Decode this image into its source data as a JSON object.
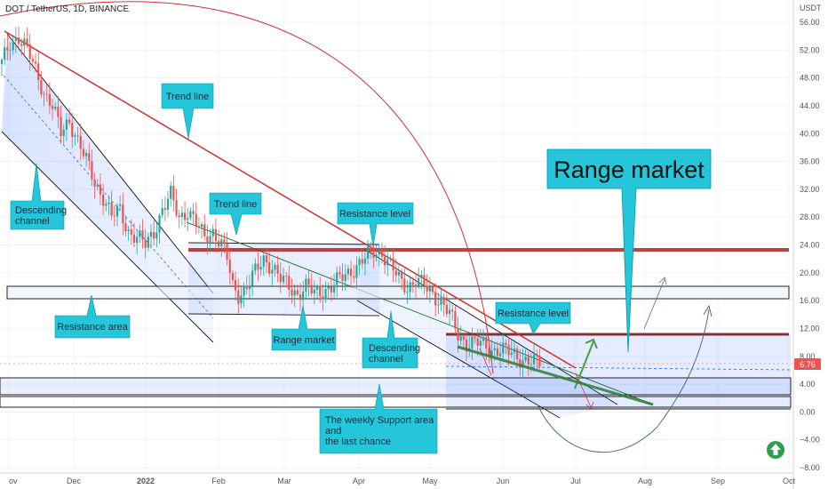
{
  "chart_data": {
    "type": "candlestick",
    "title": "DOT / TetherUS, 1D, BINANCE",
    "yunit": "USDT",
    "y_ticks": [
      56,
      52,
      48,
      44,
      40,
      36,
      32,
      28,
      24,
      20,
      16,
      12,
      8,
      4,
      0,
      -4,
      -8
    ],
    "y_tick_labels": [
      "56.00",
      "52.00",
      "48.00",
      "44.00",
      "40.00",
      "36.00",
      "32.00",
      "28.00",
      "24.00",
      "20.00",
      "16.00",
      "12.00",
      "8.00",
      "4.00",
      "0.00",
      "−4.00",
      "−8.00"
    ],
    "x_tick_labels": [
      "Nov",
      "Dec",
      "2022",
      "Feb",
      "Mar",
      "Apr",
      "May",
      "Jun",
      "Jul",
      "Aug",
      "Sep",
      "Oct"
    ],
    "last_price_label": "6.76",
    "price_path": [
      [
        0,
        50
      ],
      [
        3,
        53
      ],
      [
        6,
        54
      ],
      [
        9,
        52
      ],
      [
        12,
        49
      ],
      [
        15,
        46
      ],
      [
        18,
        44
      ],
      [
        21,
        40
      ],
      [
        24,
        42
      ],
      [
        27,
        39
      ],
      [
        30,
        36
      ],
      [
        33,
        33
      ],
      [
        36,
        31
      ],
      [
        39,
        28
      ],
      [
        42,
        29
      ],
      [
        45,
        26
      ],
      [
        48,
        25
      ],
      [
        51,
        24
      ],
      [
        54,
        26
      ],
      [
        57,
        29
      ],
      [
        60,
        31
      ],
      [
        63,
        28
      ],
      [
        66,
        29
      ],
      [
        69,
        27
      ],
      [
        72,
        25
      ],
      [
        75,
        26
      ],
      [
        78,
        24
      ],
      [
        80,
        22
      ],
      [
        82,
        18
      ],
      [
        84,
        17
      ],
      [
        87,
        18
      ],
      [
        90,
        20
      ],
      [
        93,
        22
      ],
      [
        96,
        21
      ],
      [
        99,
        19
      ],
      [
        102,
        18
      ],
      [
        105,
        17
      ],
      [
        108,
        18
      ],
      [
        111,
        17
      ],
      [
        114,
        17.5
      ],
      [
        117,
        18
      ],
      [
        120,
        19
      ],
      [
        123,
        20
      ],
      [
        126,
        21
      ],
      [
        129,
        22
      ],
      [
        132,
        23
      ],
      [
        135,
        23
      ],
      [
        138,
        21
      ],
      [
        141,
        19
      ],
      [
        144,
        18
      ],
      [
        147,
        19
      ],
      [
        150,
        18
      ],
      [
        153,
        17
      ],
      [
        156,
        16
      ],
      [
        159,
        14
      ],
      [
        162,
        11
      ],
      [
        165,
        10
      ],
      [
        168,
        10
      ],
      [
        171,
        9.5
      ],
      [
        174,
        9
      ],
      [
        177,
        9
      ],
      [
        180,
        8.5
      ],
      [
        183,
        8
      ],
      [
        186,
        7.5
      ],
      [
        189,
        7
      ],
      [
        191,
        7
      ]
    ]
  },
  "callouts": {
    "trend_line_1": "Trend line",
    "descending_channel_1": "Descending channel",
    "trend_line_2": "Trend line",
    "resistance_level_1": "Resistance level",
    "resistance_area": "Resistance area",
    "range_market_small": "Range market",
    "descending_channel_2": "Descending channel",
    "resistance_level_2": "Resistance level",
    "range_market_big": "Range market",
    "weekly_support": "The weekly Support area and the last chance"
  },
  "colors": {
    "up": "#26a69a",
    "down": "#ef5350",
    "channel_fill": "#2962ff",
    "resistance_red": "#b22222",
    "callout_fill": "#26c6da"
  }
}
